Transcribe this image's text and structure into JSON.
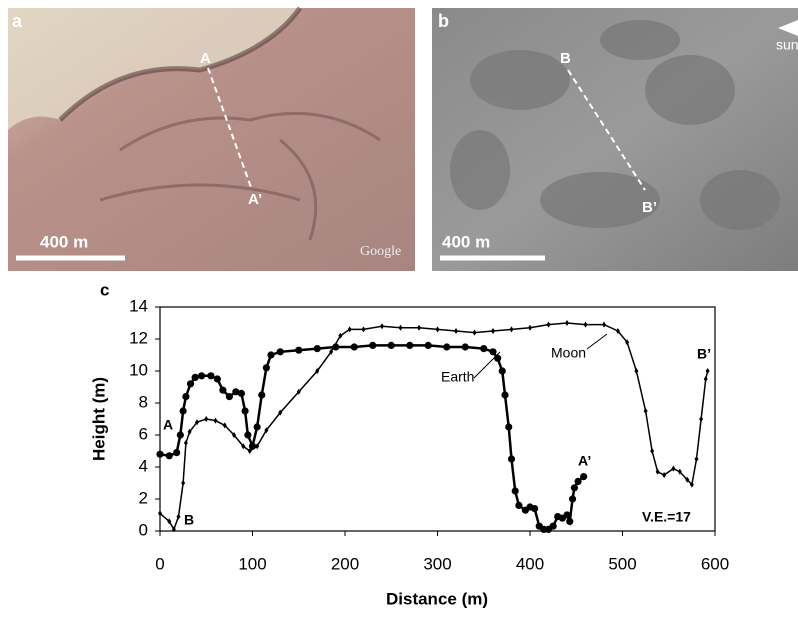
{
  "panels": {
    "a": {
      "letter": "a",
      "scale": "400 m",
      "start": "A",
      "end": "A’",
      "credit": "Google"
    },
    "b": {
      "letter": "b",
      "scale": "400 m",
      "start": "B",
      "end": "B’",
      "sun": "sun"
    }
  },
  "chart_data": {
    "type": "line",
    "letter": "c",
    "xlabel": "Distance (m)",
    "ylabel": "Height (m)",
    "xlim": [
      0,
      600
    ],
    "ylim": [
      0,
      14
    ],
    "xticks": [
      0,
      100,
      200,
      300,
      400,
      500,
      600
    ],
    "yticks": [
      0,
      2,
      4,
      6,
      8,
      10,
      12,
      14
    ],
    "series": [
      {
        "name": "Earth",
        "color": "#000000",
        "marker": "circle",
        "x": [
          0,
          10,
          18,
          22,
          25,
          28,
          33,
          38,
          45,
          55,
          62,
          68,
          75,
          82,
          88,
          92,
          95,
          100,
          105,
          110,
          115,
          120,
          130,
          150,
          170,
          190,
          210,
          230,
          250,
          270,
          290,
          310,
          330,
          350,
          360,
          365,
          370,
          373,
          377,
          380,
          384,
          388,
          395,
          400,
          405,
          410,
          415,
          420,
          425,
          430,
          435,
          440,
          443,
          446,
          448,
          452,
          458
        ],
        "values": [
          4.8,
          4.7,
          4.9,
          6,
          7.5,
          8.4,
          9.2,
          9.6,
          9.7,
          9.7,
          9.5,
          8.8,
          8.4,
          8.7,
          8.6,
          7.5,
          6,
          5.3,
          6.5,
          8.5,
          10.2,
          11,
          11.2,
          11.3,
          11.4,
          11.5,
          11.5,
          11.6,
          11.6,
          11.6,
          11.6,
          11.5,
          11.5,
          11.4,
          11.2,
          10.8,
          10,
          8.5,
          6.5,
          4.5,
          2.5,
          1.6,
          1.3,
          1.5,
          1.4,
          0.3,
          0.1,
          0.1,
          0.3,
          0.9,
          0.8,
          1,
          0.6,
          2,
          2.7,
          3.1,
          3.4
        ]
      },
      {
        "name": "Moon",
        "color": "#000000",
        "marker": "diamond",
        "x": [
          0,
          10,
          15,
          20,
          25,
          28,
          32,
          40,
          50,
          60,
          70,
          80,
          90,
          97,
          105,
          115,
          130,
          150,
          170,
          185,
          195,
          205,
          220,
          240,
          260,
          280,
          300,
          320,
          340,
          360,
          380,
          400,
          420,
          440,
          460,
          480,
          495,
          505,
          515,
          525,
          532,
          538,
          545,
          555,
          562,
          570,
          575,
          580,
          585,
          590,
          592
        ],
        "values": [
          1.1,
          0.6,
          0.1,
          0.9,
          3,
          5.5,
          6.2,
          6.8,
          7,
          6.9,
          6.6,
          6,
          5.3,
          5,
          5.3,
          6.3,
          7.4,
          8.7,
          10,
          11.2,
          12.2,
          12.6,
          12.6,
          12.8,
          12.7,
          12.7,
          12.6,
          12.5,
          12.4,
          12.5,
          12.6,
          12.7,
          12.9,
          13,
          12.9,
          12.9,
          12.5,
          11.8,
          10,
          7.5,
          5,
          3.7,
          3.5,
          3.9,
          3.7,
          3.2,
          2.9,
          4.5,
          7,
          9.5,
          10
        ]
      }
    ],
    "annotations": [
      "A",
      "B",
      "A’",
      "B’",
      "Earth",
      "Moon",
      "V.E.=17"
    ]
  }
}
